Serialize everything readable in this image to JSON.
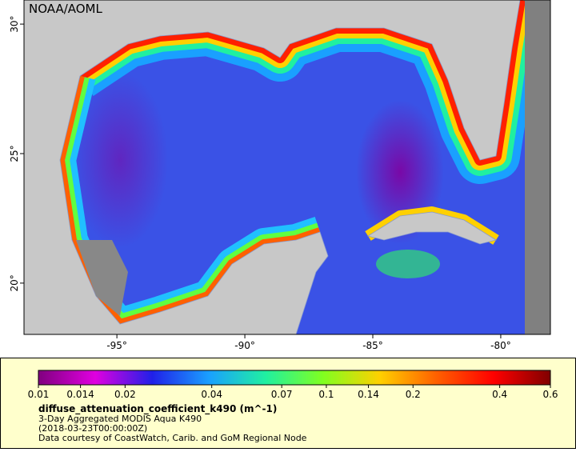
{
  "watermark": "NOAA/AOML",
  "map": {
    "xlim": [
      -98.63,
      -78.06
    ],
    "ylim": [
      18.02,
      30.93
    ],
    "xticks": [
      {
        "value": -95,
        "label": "-95°"
      },
      {
        "value": -90,
        "label": "-90°"
      },
      {
        "value": -85,
        "label": "-85°"
      },
      {
        "value": -80,
        "label": "-80°"
      }
    ],
    "yticks": [
      {
        "value": 20,
        "label": "20°"
      },
      {
        "value": 25,
        "label": "25°"
      },
      {
        "value": 30,
        "label": "30°"
      }
    ]
  },
  "colorbar": {
    "log_scale": true,
    "range": [
      0.01,
      0.6
    ],
    "ticks": [
      0.01,
      0.014,
      0.02,
      0.04,
      0.07,
      0.1,
      0.14,
      0.2,
      0.4,
      0.6
    ],
    "colors": [
      "#80007f",
      "#e000e0",
      "#2020e8",
      "#1aa0ff",
      "#20f0a0",
      "#80ff20",
      "#ffd000",
      "#ff6000",
      "#ff0000",
      "#800000"
    ]
  },
  "legend": {
    "variable": "diffuse_attenuation_coefficient_k490 (m^-1)",
    "line1": "3-Day Aggregated MODIS Aqua K490",
    "line2": "(2018-03-23T00:00:00Z)",
    "line3": "Data courtesy of CoastWatch, Carib. and GoM Regional Node"
  }
}
